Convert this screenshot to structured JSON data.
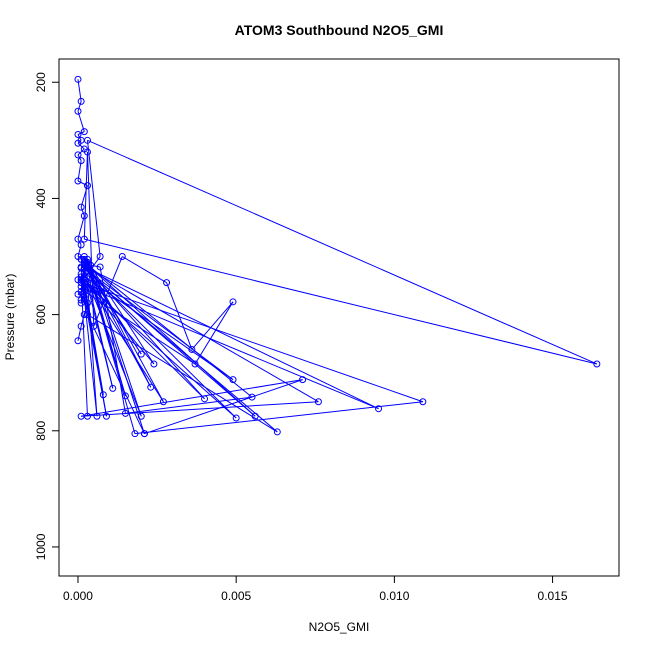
{
  "chart_data": {
    "type": "line",
    "title": "ATOM3 Southbound N2O5_GMI",
    "xlabel": "N2O5_GMI",
    "ylabel": "Pressure (mbar)",
    "xlim": [
      -0.0006,
      0.0171
    ],
    "ylim": [
      1050,
      160
    ],
    "y_reversed": true,
    "grid": false,
    "legend": "none",
    "xticks": [
      0.0,
      0.005,
      0.01,
      0.015
    ],
    "xtick_labels": [
      "0.000",
      "0.005",
      "0.010",
      "0.015"
    ],
    "yticks": [
      200,
      400,
      600,
      800,
      1000
    ],
    "ytick_labels": [
      "200",
      "400",
      "600",
      "800",
      "1000"
    ],
    "color": "#0000ff",
    "series": [
      {
        "x": [
          0.0,
          0.0001,
          0.0,
          0.0002,
          0.0,
          0.0001,
          0.0,
          0.0002,
          0.0,
          0.0001,
          0.0,
          0.0003,
          0.0001,
          0.0002,
          0.0,
          0.0001,
          0.0,
          0.0002,
          0.0003,
          0.0001,
          0.0004,
          0.0002,
          0.0,
          0.0003,
          0.0001,
          0.0002,
          0.0001,
          0.0,
          0.0002,
          0.0001,
          0.0003,
          0.0002,
          0.0001,
          0.0
        ],
        "y": [
          195,
          233,
          250,
          285,
          290,
          300,
          305,
          315,
          325,
          335,
          370,
          378,
          415,
          430,
          470,
          480,
          500,
          505,
          510,
          518,
          525,
          535,
          540,
          548,
          552,
          556,
          560,
          565,
          570,
          575,
          580,
          600,
          620,
          645
        ]
      },
      {
        "x": [
          0.0002,
          0.0037,
          0.0049,
          0.0036,
          0.0028,
          0.0014,
          0.0005,
          0.0003,
          0.0002,
          0.0164,
          0.0003,
          0.0007,
          0.0001,
          0.0109,
          0.0018,
          0.0005,
          0.0095,
          0.0003,
          0.0076,
          0.0001,
          0.0071,
          0.0021,
          0.0003,
          0.0063,
          0.0004,
          0.0001,
          0.0002,
          0.0055,
          0.0015,
          0.0007,
          0.0004,
          0.0003,
          0.0021
        ],
        "y": [
          560,
          685,
          578,
          660,
          545,
          500,
          620,
          320,
          470,
          685,
          300,
          500,
          545,
          750,
          805,
          558,
          762,
          520,
          750,
          775,
          712,
          805,
          600,
          802,
          530,
          580,
          510,
          742,
          770,
          518,
          515,
          505,
          805
        ]
      },
      {
        "x": [
          0.0001,
          0.0009,
          0.0001,
          0.0006,
          0.0003,
          0.0027,
          0.0005,
          0.002,
          0.0004,
          0.0024,
          0.0002,
          0.0015,
          0.0003,
          0.0023,
          0.0001,
          0.0056,
          0.0002,
          0.0049,
          0.0001,
          0.0008,
          0.0002,
          0.005,
          0.0003,
          0.002,
          0.0001,
          0.0011,
          0.0002,
          0.004,
          0.0001,
          0.0003
        ],
        "y": [
          540,
          775,
          520,
          775,
          545,
          750,
          530,
          775,
          555,
          685,
          500,
          740,
          510,
          725,
          505,
          775,
          520,
          712,
          530,
          738,
          545,
          778,
          525,
          668,
          505,
          727,
          515,
          745,
          535,
          775
        ]
      }
    ]
  }
}
